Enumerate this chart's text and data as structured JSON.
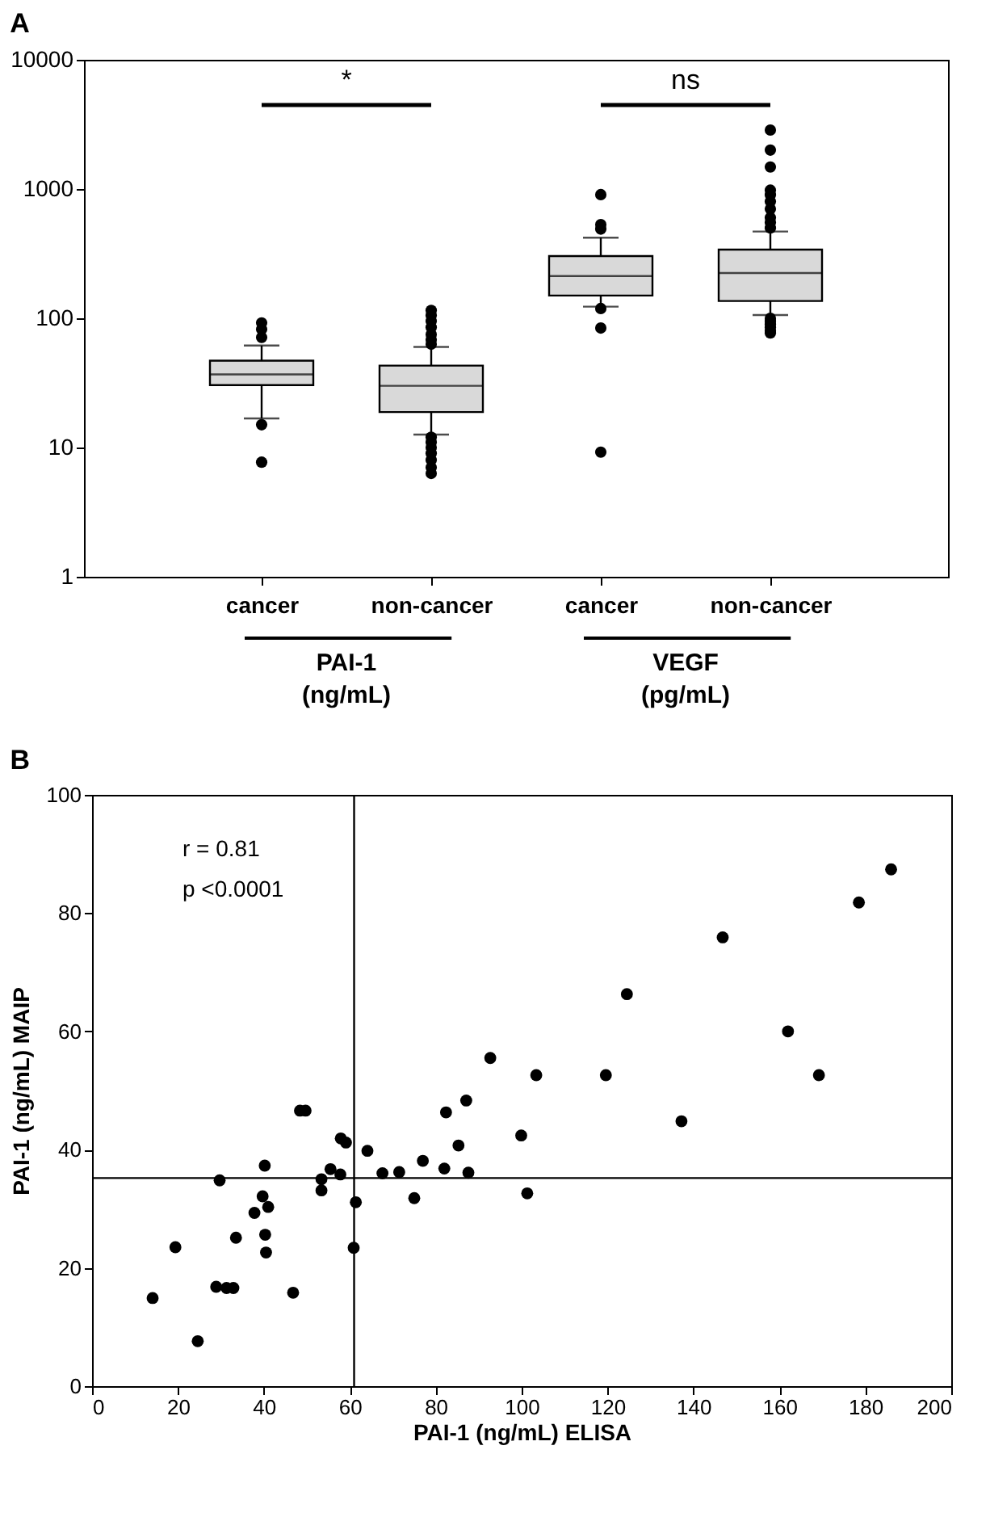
{
  "chart_data": [
    {
      "type": "box",
      "title": "A",
      "categories": [
        "cancer",
        "non-cancer",
        "cancer",
        "non-cancer"
      ],
      "log": true,
      "ylim": [
        1,
        10000
      ],
      "yticks": [
        1,
        10,
        100,
        1000,
        10000
      ],
      "series": [
        {
          "color": "#d9d9d9",
          "boxes": [
            {
              "low": 16.8,
              "q1": 30.4,
              "median": 36.8,
              "q3": 47,
              "high": 61.5,
              "outliers": [
                92,
                82,
                71,
                15,
                7.7
              ]
            },
            {
              "low": 12.6,
              "q1": 18.8,
              "median": 30,
              "q3": 43,
              "high": 60,
              "outliers": [
                115,
                105,
                95,
                85,
                75,
                68,
                63,
                12,
                11,
                10,
                9,
                8,
                7,
                6.3
              ]
            },
            {
              "low": 123,
              "q1": 150,
              "median": 212,
              "q3": 303,
              "high": 420,
              "outliers": [
                905,
                530,
                490,
                119,
                84,
                9.2
              ]
            },
            {
              "low": 106,
              "q1": 136,
              "median": 224,
              "q3": 340,
              "high": 469,
              "outliers": [
                2860,
                2000,
                1480,
                980,
                900,
                800,
                700,
                600,
                550,
                500,
                100,
                95,
                90,
                85,
                80,
                77
              ]
            }
          ]
        }
      ],
      "annotations": [
        "*",
        "ns",
        "PAI-1 (ng/mL)",
        "VEGF (pg/mL)"
      ]
    },
    {
      "type": "scatter",
      "title": "B",
      "xlabel": "PAI-1 (ng/mL) ELISA",
      "ylabel": "PAI-1 (ng/mL) MAIP",
      "xlim": [
        0,
        200
      ],
      "xticks": [
        0,
        20,
        40,
        60,
        80,
        100,
        120,
        140,
        160,
        180,
        200
      ],
      "ylim": [
        0,
        100
      ],
      "yticks": [
        0,
        20,
        40,
        60,
        80,
        100
      ],
      "marker": "circle",
      "series": [
        {
          "color": "#000000",
          "x": [
            14.1,
            19.4,
            24.6,
            28.9,
            31.3,
            32.9,
            29.7,
            33.5,
            37.8,
            39.7,
            41.0,
            40.3,
            40.5,
            40.2,
            46.8,
            48.4,
            49.7,
            53.4,
            53.4,
            55.5,
            57.8,
            57.9,
            59.1,
            60.9,
            61.4,
            64.1,
            67.6,
            71.5,
            75.0,
            77.0,
            82.0,
            82.4,
            85.3,
            87.1,
            87.6,
            92.7,
            99.9,
            101.3,
            103.4,
            119.6,
            124.5,
            137.2,
            146.8,
            162.0,
            169.2,
            178.5,
            186.0
          ],
          "values": [
            14.9,
            23.5,
            7.6,
            16.8,
            16.6,
            16.6,
            34.8,
            25.1,
            29.3,
            32.1,
            30.3,
            25.6,
            22.6,
            37.3,
            15.8,
            46.6,
            46.6,
            33.1,
            35.0,
            36.7,
            35.8,
            41.9,
            41.2,
            23.4,
            31.1,
            39.8,
            36.0,
            36.2,
            31.8,
            38.1,
            36.8,
            46.3,
            40.7,
            48.3,
            36.1,
            55.5,
            42.4,
            32.6,
            52.6,
            52.6,
            66.3,
            44.8,
            75.9,
            60.0,
            52.6,
            81.8,
            87.4
          ]
        }
      ],
      "ref_lines": [
        {
          "axis": "x",
          "value": 61,
          "color": "#000000"
        },
        {
          "axis": "y",
          "value": 35.2,
          "color": "#000000"
        }
      ],
      "annotations": [
        "r = 0.81",
        "p <0.0001"
      ]
    }
  ]
}
